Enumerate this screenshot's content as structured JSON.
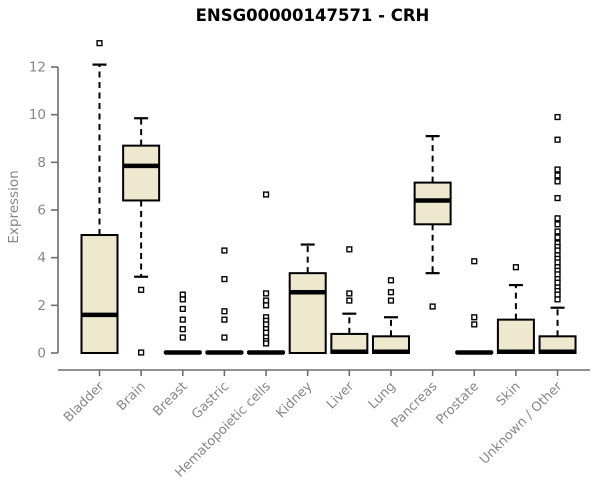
{
  "colors": {
    "background": "#ffffff",
    "title_text": "#000000",
    "axis_line": "#6e6e6e",
    "axis_text": "#878787",
    "box_fill": "#EDE8CE",
    "box_stroke": "#000000",
    "outlier_fill": "#ffffff"
  },
  "chart_data": {
    "type": "boxplot",
    "title": "ENSG00000147571 - CRH",
    "xlabel": "",
    "ylabel": "Expression",
    "ylim": [
      0,
      12
    ],
    "yticks": [
      0,
      2,
      4,
      6,
      8,
      10,
      12
    ],
    "grid": false,
    "legend": false,
    "categories": [
      "Bladder",
      "Brain",
      "Breast",
      "Gastric",
      "Hematopoietic cells",
      "Kidney",
      "Liver",
      "Lung",
      "Pancreas",
      "Prostate",
      "Skin",
      "Unknown / Other"
    ],
    "series": [
      {
        "name": "Bladder",
        "whisker_low": 0,
        "q1": 0,
        "median": 1.6,
        "q3": 4.95,
        "whisker_high": 12.1,
        "outliers": [
          13.0
        ]
      },
      {
        "name": "Brain",
        "whisker_low": 3.2,
        "q1": 6.4,
        "median": 7.85,
        "q3": 8.7,
        "whisker_high": 9.85,
        "outliers": [
          2.65,
          0.02
        ]
      },
      {
        "name": "Breast",
        "whisker_low": 0,
        "q1": 0,
        "median": 0.02,
        "q3": 0.05,
        "whisker_high": 0.05,
        "outliers": [
          2.45,
          2.25,
          1.85,
          1.4,
          1.0,
          0.65
        ]
      },
      {
        "name": "Gastric",
        "whisker_low": 0,
        "q1": 0,
        "median": 0.02,
        "q3": 0.05,
        "whisker_high": 0.05,
        "outliers": [
          4.3,
          3.1,
          1.75,
          1.4,
          0.65
        ]
      },
      {
        "name": "Hematopoietic cells",
        "whisker_low": 0,
        "q1": 0,
        "median": 0.02,
        "q3": 0.05,
        "whisker_high": 0.05,
        "outliers": [
          6.65,
          2.5,
          2.2,
          2.0,
          1.5,
          1.35,
          1.2,
          1.0,
          0.85,
          0.65,
          0.5,
          0.4
        ]
      },
      {
        "name": "Kidney",
        "whisker_low": 0,
        "q1": 0,
        "median": 2.55,
        "q3": 3.35,
        "whisker_high": 4.55,
        "outliers": []
      },
      {
        "name": "Liver",
        "whisker_low": 0,
        "q1": 0,
        "median": 0.05,
        "q3": 0.8,
        "whisker_high": 1.65,
        "outliers": [
          4.35,
          2.5,
          2.2
        ]
      },
      {
        "name": "Lung",
        "whisker_low": 0,
        "q1": 0,
        "median": 0.05,
        "q3": 0.7,
        "whisker_high": 1.5,
        "outliers": [
          3.05,
          2.55,
          2.2
        ]
      },
      {
        "name": "Pancreas",
        "whisker_low": 3.35,
        "q1": 5.4,
        "median": 6.4,
        "q3": 7.15,
        "whisker_high": 9.1,
        "outliers": [
          1.95
        ]
      },
      {
        "name": "Prostate",
        "whisker_low": 0,
        "q1": 0,
        "median": 0.02,
        "q3": 0.05,
        "whisker_high": 0.05,
        "outliers": [
          3.85,
          1.5,
          1.2
        ]
      },
      {
        "name": "Skin",
        "whisker_low": 0,
        "q1": 0,
        "median": 0.05,
        "q3": 1.4,
        "whisker_high": 2.85,
        "outliers": [
          3.6
        ]
      },
      {
        "name": "Unknown / Other",
        "whisker_low": 0,
        "q1": 0,
        "median": 0.05,
        "q3": 0.7,
        "whisker_high": 1.9,
        "outliers": [
          9.9,
          8.95,
          7.7,
          7.45,
          7.2,
          6.5,
          5.65,
          5.4,
          5.1,
          4.85,
          4.6,
          4.45,
          4.3,
          4.1,
          3.95,
          3.8,
          3.6,
          3.45,
          3.3,
          3.1,
          2.95,
          2.75,
          2.6,
          2.45,
          2.25
        ]
      }
    ]
  }
}
